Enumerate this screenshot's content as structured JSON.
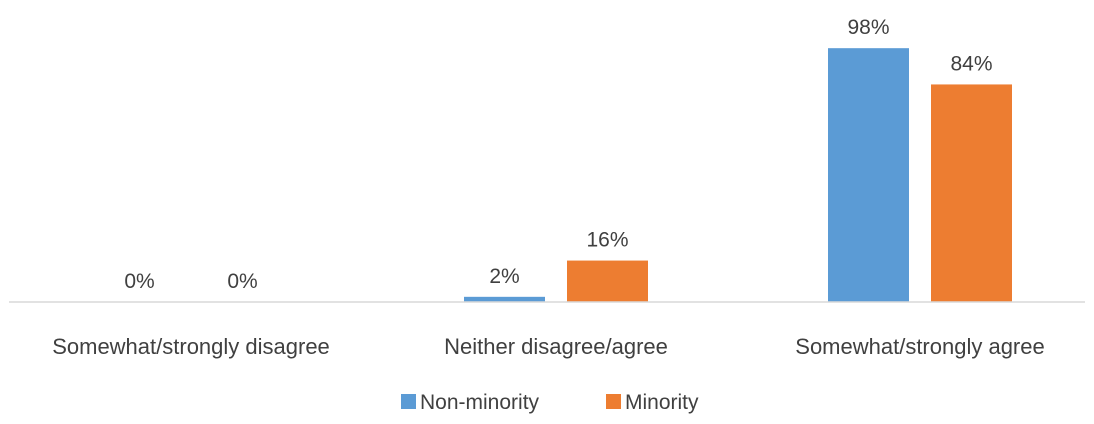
{
  "chart_data": {
    "type": "bar",
    "categories": [
      "Somewhat/strongly disagree",
      "Neither disagree/agree",
      "Somewhat/strongly agree"
    ],
    "series": [
      {
        "name": "Non-minority",
        "values": [
          0,
          2,
          98
        ],
        "labels": [
          "0%",
          "2%",
          "98%"
        ]
      },
      {
        "name": "Minority",
        "values": [
          0,
          16,
          84
        ],
        "labels": [
          "0%",
          "16%",
          "84%"
        ]
      }
    ],
    "ylim": [
      0,
      100
    ],
    "grid": false,
    "legend": "bottom",
    "colors": [
      "#5b9bd5",
      "#ed7d31"
    ],
    "axis_color": "#d9d9d9"
  }
}
